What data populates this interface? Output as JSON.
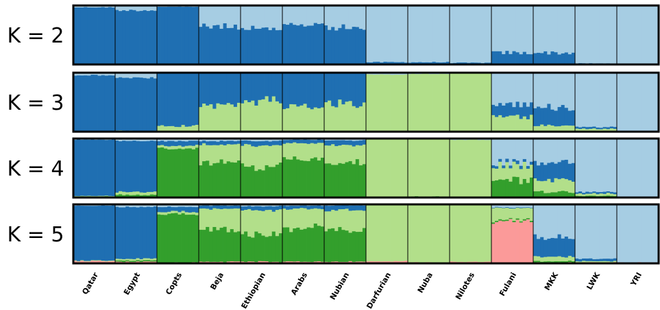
{
  "chart_data": {
    "type": "bar",
    "subtype": "stacked-admixture",
    "populations": [
      "Qatar",
      "Egypt",
      "Copts",
      "Beja",
      "Ethiopian",
      "Arabs",
      "Nubian",
      "Darfurian",
      "Nuba",
      "Nilotes",
      "Fulani",
      "MKK",
      "LWK",
      "YRI"
    ],
    "components": {
      "dark_blue": "#1f6fb2",
      "light_blue": "#a6cde3",
      "light_green": "#b2df8a",
      "dark_green": "#339f2c",
      "pink": "#fb9a99"
    },
    "panels": [
      {
        "label": "K = 2",
        "components": [
          "light_blue",
          "dark_blue"
        ],
        "means": [
          [
            0.03,
            0.97
          ],
          [
            0.08,
            0.92
          ],
          [
            0.02,
            0.98
          ],
          [
            0.36,
            0.64
          ],
          [
            0.42,
            0.58
          ],
          [
            0.32,
            0.68
          ],
          [
            0.38,
            0.62
          ],
          [
            0.96,
            0.04
          ],
          [
            0.96,
            0.04
          ],
          [
            0.97,
            0.03
          ],
          [
            0.8,
            0.2
          ],
          [
            0.8,
            0.2
          ],
          [
            0.98,
            0.02
          ],
          [
            1.0,
            0.0
          ]
        ]
      },
      {
        "label": "K = 3",
        "components": [
          "light_blue",
          "dark_blue",
          "light_green"
        ],
        "means": [
          [
            0.04,
            0.96,
            0.0
          ],
          [
            0.09,
            0.89,
            0.02
          ],
          [
            0.0,
            0.9,
            0.1
          ],
          [
            0.0,
            0.55,
            0.45
          ],
          [
            0.0,
            0.47,
            0.53
          ],
          [
            0.0,
            0.55,
            0.45
          ],
          [
            0.0,
            0.5,
            0.5
          ],
          [
            0.03,
            0.0,
            0.97
          ],
          [
            0.02,
            0.0,
            0.98
          ],
          [
            0.01,
            0.0,
            0.99
          ],
          [
            0.55,
            0.2,
            0.25
          ],
          [
            0.58,
            0.32,
            0.1
          ],
          [
            0.92,
            0.03,
            0.05
          ],
          [
            1.0,
            0.0,
            0.0
          ]
        ]
      },
      {
        "label": "K = 4",
        "components": [
          "light_blue",
          "dark_blue",
          "light_green",
          "dark_green"
        ],
        "means": [
          [
            0.02,
            0.95,
            0.01,
            0.02
          ],
          [
            0.04,
            0.86,
            0.05,
            0.05
          ],
          [
            0.04,
            0.08,
            0.05,
            0.83
          ],
          [
            0.04,
            0.06,
            0.3,
            0.6
          ],
          [
            0.04,
            0.08,
            0.35,
            0.53
          ],
          [
            0.02,
            0.06,
            0.28,
            0.64
          ],
          [
            0.03,
            0.08,
            0.3,
            0.59
          ],
          [
            0.01,
            0.0,
            0.98,
            0.01
          ],
          [
            0.01,
            0.0,
            0.97,
            0.02
          ],
          [
            0.02,
            0.0,
            0.98,
            0.0
          ],
          [
            0.4,
            0.05,
            0.25,
            0.3
          ],
          [
            0.4,
            0.3,
            0.2,
            0.1
          ],
          [
            0.9,
            0.03,
            0.04,
            0.03
          ],
          [
            1.0,
            0.0,
            0.0,
            0.0
          ]
        ]
      },
      {
        "label": "K = 5",
        "components": [
          "light_blue",
          "dark_blue",
          "light_green",
          "dark_green",
          "pink"
        ],
        "means": [
          [
            0.02,
            0.93,
            0.01,
            0.0,
            0.04
          ],
          [
            0.04,
            0.88,
            0.03,
            0.02,
            0.03
          ],
          [
            0.04,
            0.08,
            0.04,
            0.82,
            0.02
          ],
          [
            0.02,
            0.05,
            0.35,
            0.55,
            0.03
          ],
          [
            0.03,
            0.07,
            0.4,
            0.47,
            0.03
          ],
          [
            0.02,
            0.05,
            0.33,
            0.57,
            0.03
          ],
          [
            0.02,
            0.08,
            0.35,
            0.52,
            0.03
          ],
          [
            0.01,
            0.0,
            0.95,
            0.0,
            0.04
          ],
          [
            0.01,
            0.0,
            0.97,
            0.0,
            0.02
          ],
          [
            0.01,
            0.0,
            0.96,
            0.0,
            0.03
          ],
          [
            0.05,
            0.01,
            0.2,
            0.02,
            0.72
          ],
          [
            0.55,
            0.33,
            0.08,
            0.02,
            0.02
          ],
          [
            0.92,
            0.04,
            0.02,
            0.0,
            0.02
          ],
          [
            0.98,
            0.0,
            0.0,
            0.0,
            0.02
          ]
        ]
      }
    ],
    "ylim": [
      0,
      1
    ],
    "grid": false,
    "legend": "none"
  }
}
